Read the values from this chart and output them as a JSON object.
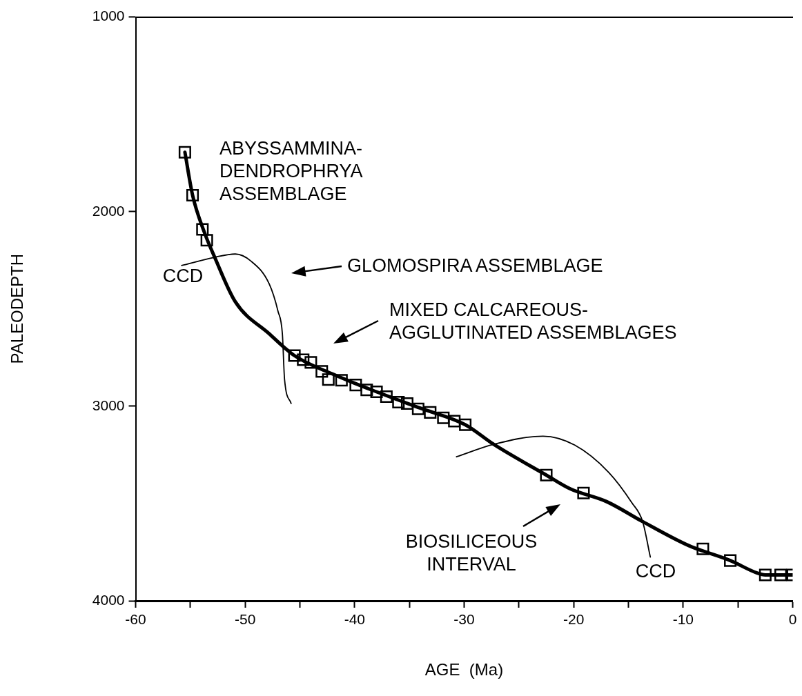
{
  "chart_data": {
    "type": "line",
    "xlabel": "AGE  (Ma)",
    "ylabel": "PALEODEPTH",
    "xlim": [
      -60,
      0
    ],
    "ylim": [
      4000,
      1000
    ],
    "xticks": [
      -60,
      {
        "value": -55,
        "label": null
      },
      -50,
      {
        "value": -45,
        "label": null
      },
      -40,
      {
        "value": -35,
        "label": null
      },
      -30,
      {
        "value": -25,
        "label": null
      },
      -20,
      {
        "value": -15,
        "label": null
      },
      -10,
      {
        "value": -5,
        "label": null
      },
      0
    ],
    "yticks": [
      1000,
      2000,
      3000,
      4000
    ],
    "grid": false,
    "legend": false,
    "series": [
      {
        "type": "line",
        "color": "#000000",
        "marker": "none",
        "x": [
          -55.5,
          -54.8,
          -53.7,
          -52.8,
          -50.9,
          -47.8,
          -45.5,
          -42,
          -38,
          -34,
          -29.9,
          -27.3,
          -22.5,
          -20.3,
          -17,
          -13.7,
          -9.5,
          -5.7,
          -3.3,
          -2.5,
          0
        ],
        "values": [
          1695,
          1916,
          2110,
          2232,
          2463,
          2628,
          2740,
          2835,
          2926,
          3010,
          3095,
          3196,
          3354,
          3425,
          3490,
          3593,
          3716,
          3793,
          3856,
          3867,
          3867
        ]
      },
      {
        "type": "scatter",
        "color": "#000000",
        "marker": "square",
        "x": [
          -55.5,
          -54.8,
          -53.9,
          -53.5,
          -45.5,
          -44.7,
          -44,
          -43,
          -42.4,
          -41.2,
          -39.9,
          -38.9,
          -38,
          -37.1,
          -36,
          -35.2,
          -34.2,
          -33.1,
          -31.9,
          -30.9,
          -29.9,
          -22.5,
          -19.1,
          -8.2,
          -5.7,
          -2.5,
          -1.1,
          0
        ],
        "values": [
          1695,
          1916,
          2091,
          2147,
          2740,
          2761,
          2775,
          2821,
          2863,
          2867,
          2891,
          2916,
          2926,
          2951,
          2979,
          2986,
          3014,
          3032,
          3060,
          3077,
          3095,
          3354,
          3446,
          3733,
          3793,
          3867,
          3867,
          3867
        ]
      },
      {
        "type": "line",
        "color": "#000000",
        "marker": "none",
        "x": [
          -55.8,
          -52.8,
          -50.9,
          -49.5,
          -47.8,
          -47,
          -46.6,
          -46.4,
          -45.8
        ],
        "values": [
          2277,
          2235,
          2218,
          2253,
          2372,
          2512,
          2628,
          2863,
          2986
        ]
      },
      {
        "type": "line",
        "color": "#000000",
        "marker": "none",
        "x": [
          -30.7,
          -27.3,
          -22.8,
          -19.9,
          -16.8,
          -14.7,
          -13.7,
          -13
        ],
        "values": [
          3260,
          3196,
          3154,
          3200,
          3340,
          3495,
          3593,
          3775
        ]
      }
    ],
    "annotations": [
      "ABYSSAMMINA-\nDENDROPHRYA\nASSEMBLAGE",
      "CCD",
      "GLOMOSPIRA ASSEMBLAGE",
      "MIXED CALCAREOUS-\nAGGLUTINATED ASSEMBLAGES",
      "BIOSILICEOUS\nINTERVAL",
      "CCD"
    ]
  }
}
